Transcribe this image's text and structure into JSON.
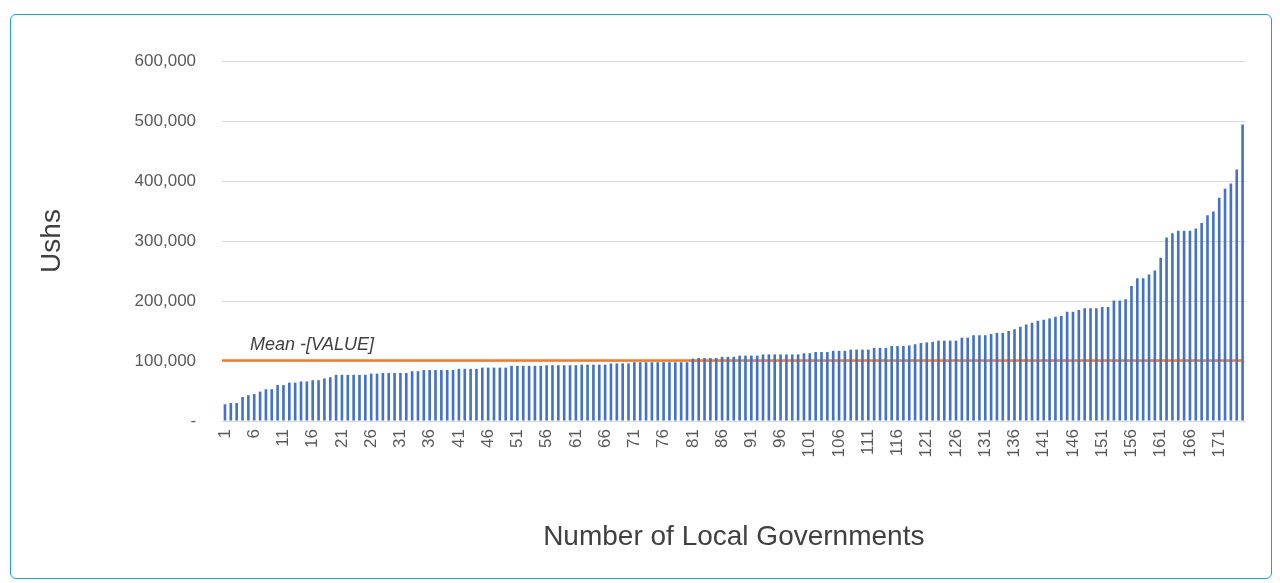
{
  "chart_data": {
    "type": "bar",
    "xlabel": "Number of Local Governments",
    "ylabel": "Ushs",
    "categories": [
      "1",
      null,
      null,
      null,
      null,
      "6",
      null,
      null,
      null,
      null,
      "11",
      null,
      null,
      null,
      null,
      "16",
      null,
      null,
      null,
      null,
      "21",
      null,
      null,
      null,
      null,
      "26",
      null,
      null,
      null,
      null,
      "31",
      null,
      null,
      null,
      null,
      "36",
      null,
      null,
      null,
      null,
      "41",
      null,
      null,
      null,
      null,
      "46",
      null,
      null,
      null,
      null,
      "51",
      null,
      null,
      null,
      null,
      "56",
      null,
      null,
      null,
      null,
      "61",
      null,
      null,
      null,
      null,
      "66",
      null,
      null,
      null,
      null,
      "71",
      null,
      null,
      null,
      null,
      "76",
      null,
      null,
      null,
      null,
      "81",
      null,
      null,
      null,
      null,
      "86",
      null,
      null,
      null,
      null,
      "91",
      null,
      null,
      null,
      null,
      "96",
      null,
      null,
      null,
      null,
      "101",
      null,
      null,
      null,
      null,
      "106",
      null,
      null,
      null,
      null,
      "111",
      null,
      null,
      null,
      null,
      "116",
      null,
      null,
      null,
      null,
      "121",
      null,
      null,
      null,
      null,
      "126",
      null,
      null,
      null,
      null,
      "131",
      null,
      null,
      null,
      null,
      "136",
      null,
      null,
      null,
      null,
      "141",
      null,
      null,
      null,
      null,
      "146",
      null,
      null,
      null,
      null,
      "151",
      null,
      null,
      null,
      null,
      "156",
      null,
      null,
      null,
      null,
      "161",
      null,
      null,
      null,
      null,
      "166",
      null,
      null,
      null,
      null,
      "171",
      null,
      null,
      null,
      null
    ],
    "values": [
      28000,
      30000,
      30000,
      40000,
      43000,
      45000,
      49000,
      53000,
      53000,
      60000,
      60000,
      64000,
      64000,
      66000,
      66000,
      68000,
      68000,
      71000,
      73000,
      77000,
      77000,
      77000,
      77000,
      77000,
      77000,
      79000,
      79000,
      80000,
      80000,
      80000,
      80000,
      80000,
      83000,
      83000,
      85000,
      85000,
      85000,
      85000,
      85000,
      85000,
      87000,
      87000,
      87000,
      87000,
      89000,
      89000,
      89000,
      89000,
      89000,
      92000,
      92000,
      92000,
      92000,
      92000,
      92000,
      93000,
      93000,
      93000,
      93000,
      93000,
      93000,
      94000,
      94000,
      94000,
      94000,
      94000,
      96000,
      96000,
      96000,
      96000,
      98000,
      98000,
      98000,
      98000,
      98000,
      98000,
      98000,
      98000,
      98000,
      98000,
      104000,
      105000,
      105000,
      105000,
      105000,
      107000,
      107000,
      107000,
      109000,
      109000,
      109000,
      109000,
      111000,
      111000,
      111000,
      111000,
      111000,
      111000,
      111000,
      113000,
      113000,
      115000,
      115000,
      115000,
      117000,
      117000,
      117000,
      119000,
      119000,
      119000,
      119000,
      122000,
      122000,
      122000,
      125000,
      125000,
      125000,
      126000,
      128000,
      130000,
      131000,
      132000,
      134000,
      134000,
      134000,
      134000,
      139000,
      139000,
      143000,
      143000,
      143000,
      145000,
      147000,
      147000,
      150000,
      153000,
      157000,
      161000,
      164000,
      167000,
      169000,
      171000,
      174000,
      175000,
      182000,
      182000,
      185000,
      188000,
      188000,
      188000,
      190000,
      190000,
      201000,
      201000,
      203000,
      225000,
      238000,
      238000,
      244000,
      251000,
      272000,
      306000,
      313000,
      317000,
      317000,
      317000,
      321000,
      330000,
      343000,
      349000,
      372000,
      387000,
      396000,
      419000,
      494000
    ],
    "color": "#4472c4",
    "ylim": [
      0,
      600000
    ],
    "yticks": [
      {
        "value": 0,
        "label": "-"
      },
      {
        "value": 100000,
        "label": "100,000"
      },
      {
        "value": 200000,
        "label": "200,000"
      },
      {
        "value": 300000,
        "label": "300,000"
      },
      {
        "value": 400000,
        "label": "400,000"
      },
      {
        "value": 500000,
        "label": "500,000"
      },
      {
        "value": 600000,
        "label": "600,000"
      }
    ],
    "grid": "y",
    "ref_lines": [
      {
        "axis": "y",
        "value": 101000,
        "label": "Mean -[VALUE]",
        "color": "#ed7d31"
      }
    ]
  }
}
